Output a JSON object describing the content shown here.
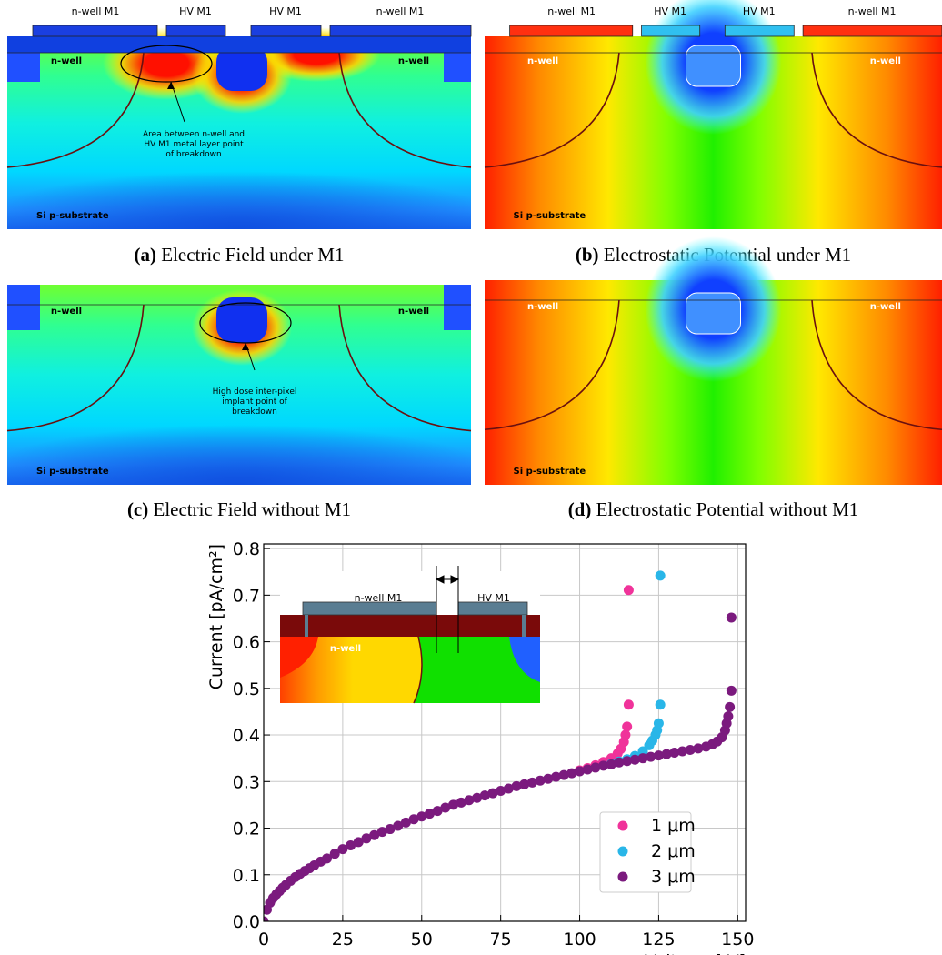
{
  "panels": [
    {
      "tag": "(a)",
      "caption": "Electric Field under M1",
      "labels": [
        "n-well M1",
        "HV M1",
        "HV M1",
        "n-well M1",
        "n-well",
        "n-well",
        "Si p-substrate"
      ],
      "annotation": [
        "Area between n-well and",
        "HV M1 metal layer point",
        "of breakdown"
      ]
    },
    {
      "tag": "(b)",
      "caption": "Electrostatic Potential under M1",
      "labels": [
        "n-well M1",
        "HV M1",
        "HV M1",
        "n-well M1",
        "n-well",
        "n-well",
        "Si p-substrate"
      ]
    },
    {
      "tag": "(c)",
      "caption": "Electric Field without M1",
      "labels": [
        "n-well",
        "n-well",
        "Si p-substrate"
      ],
      "annotation": [
        "High dose inter-pixel",
        "implant point of",
        "breakdown"
      ]
    },
    {
      "tag": "(d)",
      "caption": "Electrostatic Potential without M1",
      "labels": [
        "n-well",
        "n-well",
        "Si p-substrate"
      ]
    }
  ],
  "chart_data": {
    "type": "scatter",
    "xlabel": "Voltage [-V]",
    "ylabel": "Current [pA/cm²]",
    "xlim": [
      0,
      152.5
    ],
    "ylim": [
      0,
      0.81
    ],
    "xticks": [
      0,
      25,
      50,
      75,
      100,
      125,
      150
    ],
    "yticks": [
      {
        "value": 0,
        "label": "0.0"
      },
      0.1,
      0.2,
      0.3,
      0.4,
      0.5,
      0.6,
      0.7,
      0.8
    ],
    "grid": true,
    "legend": "lower right",
    "inset_labels": [
      "n-well M1",
      "HV M1",
      "n-well"
    ],
    "series": [
      {
        "name": "1 μm",
        "color": "#f0339a",
        "x": [
          100,
          102.5,
          105,
          107.5,
          110,
          112,
          113,
          114,
          114.5,
          115,
          115.5,
          115.5
        ],
        "values": [
          0.324,
          0.329,
          0.335,
          0.342,
          0.35,
          0.36,
          0.37,
          0.385,
          0.4,
          0.418,
          0.465,
          0.711
        ]
      },
      {
        "name": "2 μm",
        "color": "#29b6e8",
        "x": [
          110,
          112.5,
          115,
          117.5,
          120,
          122,
          123,
          124,
          124.5,
          125,
          125.5,
          125.5
        ],
        "values": [
          0.338,
          0.343,
          0.348,
          0.355,
          0.365,
          0.378,
          0.388,
          0.4,
          0.41,
          0.425,
          0.465,
          0.742
        ]
      },
      {
        "name": "3 μm",
        "color": "#7b1a7e",
        "x": [
          0,
          1,
          2,
          3,
          4,
          5,
          6,
          7,
          8.5,
          10,
          11.5,
          13,
          14.5,
          16,
          18,
          20,
          22.5,
          25,
          27.5,
          30,
          32.5,
          35,
          37.5,
          40,
          42.5,
          45,
          47.5,
          50,
          52.5,
          55,
          57.5,
          60,
          62.5,
          65,
          67.5,
          70,
          72.5,
          75,
          77.5,
          80,
          82.5,
          85,
          87.5,
          90,
          92.5,
          95,
          97.5,
          100,
          102.5,
          105,
          107.5,
          110,
          112.5,
          115,
          117.5,
          120,
          122.5,
          125,
          127.5,
          130,
          132.5,
          135,
          137.5,
          140,
          142,
          143.5,
          145,
          146,
          146.5,
          147,
          147.5,
          148,
          148
        ],
        "values": [
          0,
          0.025,
          0.04,
          0.05,
          0.058,
          0.065,
          0.072,
          0.078,
          0.087,
          0.095,
          0.102,
          0.108,
          0.114,
          0.12,
          0.128,
          0.135,
          0.145,
          0.155,
          0.163,
          0.17,
          0.178,
          0.185,
          0.192,
          0.198,
          0.205,
          0.212,
          0.219,
          0.225,
          0.231,
          0.237,
          0.244,
          0.25,
          0.255,
          0.26,
          0.265,
          0.27,
          0.275,
          0.28,
          0.285,
          0.29,
          0.294,
          0.298,
          0.302,
          0.306,
          0.31,
          0.314,
          0.318,
          0.322,
          0.326,
          0.33,
          0.334,
          0.337,
          0.341,
          0.344,
          0.347,
          0.35,
          0.353,
          0.356,
          0.359,
          0.362,
          0.365,
          0.368,
          0.371,
          0.375,
          0.38,
          0.386,
          0.395,
          0.41,
          0.425,
          0.44,
          0.46,
          0.495,
          0.652
        ]
      }
    ]
  }
}
